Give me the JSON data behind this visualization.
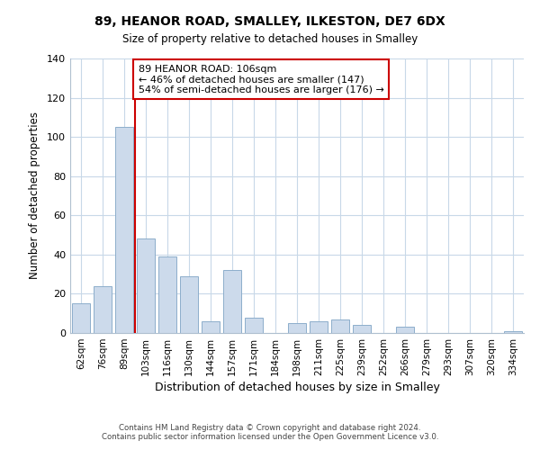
{
  "title1": "89, HEANOR ROAD, SMALLEY, ILKESTON, DE7 6DX",
  "title2": "Size of property relative to detached houses in Smalley",
  "xlabel": "Distribution of detached houses by size in Smalley",
  "ylabel": "Number of detached properties",
  "bar_labels": [
    "62sqm",
    "76sqm",
    "89sqm",
    "103sqm",
    "116sqm",
    "130sqm",
    "144sqm",
    "157sqm",
    "171sqm",
    "184sqm",
    "198sqm",
    "211sqm",
    "225sqm",
    "239sqm",
    "252sqm",
    "266sqm",
    "279sqm",
    "293sqm",
    "307sqm",
    "320sqm",
    "334sqm"
  ],
  "bar_values": [
    15,
    24,
    105,
    48,
    39,
    29,
    6,
    32,
    8,
    0,
    5,
    6,
    7,
    4,
    0,
    3,
    0,
    0,
    0,
    0,
    1
  ],
  "bar_color": "#ccdaeb",
  "bar_edge_color": "#8daecb",
  "vline_x": 2.5,
  "vline_color": "#cc0000",
  "annotation_title": "89 HEANOR ROAD: 106sqm",
  "annotation_line1": "← 46% of detached houses are smaller (147)",
  "annotation_line2": "54% of semi-detached houses are larger (176) →",
  "annotation_box_edge": "#cc0000",
  "ylim": [
    0,
    140
  ],
  "yticks": [
    0,
    20,
    40,
    60,
    80,
    100,
    120,
    140
  ],
  "footer1": "Contains HM Land Registry data © Crown copyright and database right 2024.",
  "footer2": "Contains public sector information licensed under the Open Government Licence v3.0."
}
